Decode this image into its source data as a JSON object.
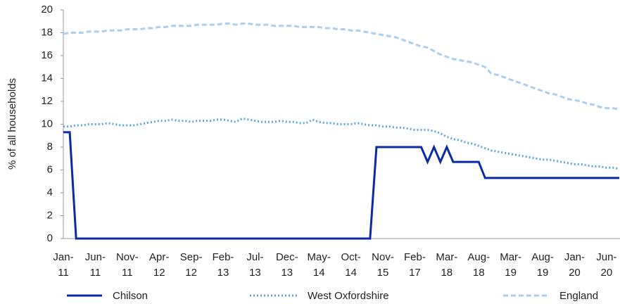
{
  "chart_data": {
    "type": "line",
    "ylabel": "% of all households",
    "categories": [
      "Jan-11",
      null,
      null,
      null,
      null,
      "Jun-11",
      null,
      null,
      null,
      null,
      "Nov-11",
      null,
      null,
      null,
      null,
      "Apr-12",
      null,
      null,
      null,
      null,
      "Sep-12",
      null,
      null,
      null,
      null,
      "Feb-13",
      null,
      null,
      null,
      null,
      "Jul-13",
      null,
      null,
      null,
      null,
      "Dec-13",
      null,
      null,
      null,
      null,
      "May-14",
      null,
      null,
      null,
      null,
      "Oct-14",
      null,
      null,
      null,
      null,
      "Nov-15",
      null,
      null,
      null,
      null,
      "Feb-17",
      null,
      null,
      null,
      null,
      "Mar-18",
      null,
      null,
      null,
      null,
      "Aug-18",
      null,
      null,
      null,
      null,
      "Mar-19",
      null,
      null,
      null,
      null,
      "Aug-19",
      null,
      null,
      null,
      null,
      "Jan-20",
      null,
      null,
      null,
      null,
      "Jun-20",
      null,
      null
    ],
    "series": [
      {
        "name": "Chilson",
        "color": "#0a2aa6",
        "style": "solid",
        "values": [
          9.3,
          9.3,
          0,
          0,
          0,
          0,
          0,
          0,
          0,
          0,
          0,
          0,
          0,
          0,
          0,
          0,
          0,
          0,
          0,
          0,
          0,
          0,
          0,
          0,
          0,
          0,
          0,
          0,
          0,
          0,
          0,
          0,
          0,
          0,
          0,
          0,
          0,
          0,
          0,
          0,
          0,
          0,
          0,
          0,
          0,
          0,
          0,
          0,
          0,
          8,
          8,
          8,
          8,
          8,
          8,
          8,
          8,
          6.7,
          8,
          6.7,
          8,
          6.7,
          6.7,
          6.7,
          6.7,
          6.7,
          5.3,
          5.3,
          5.3,
          5.3,
          5.3,
          5.3,
          5.3,
          5.3,
          5.3,
          5.3,
          5.3,
          5.3,
          5.3,
          5.3,
          5.3,
          5.3,
          5.3,
          5.3,
          5.3,
          5.3,
          5.3,
          5.3
        ]
      },
      {
        "name": "West Oxfordshire",
        "color": "#5aa7e8",
        "style": "dotted",
        "values": [
          9.8,
          9.8,
          9.9,
          9.9,
          10.0,
          10.0,
          10.0,
          10.1,
          10.0,
          9.9,
          9.9,
          9.9,
          10.0,
          10.1,
          10.2,
          10.3,
          10.3,
          10.4,
          10.3,
          10.3,
          10.2,
          10.3,
          10.3,
          10.3,
          10.4,
          10.4,
          10.3,
          10.2,
          10.5,
          10.4,
          10.3,
          10.2,
          10.2,
          10.2,
          10.3,
          10.2,
          10.2,
          10.1,
          10.1,
          10.4,
          10.2,
          10.1,
          10.1,
          10.0,
          10.0,
          10.0,
          10.1,
          10.0,
          9.9,
          9.9,
          9.8,
          9.8,
          9.7,
          9.7,
          9.6,
          9.5,
          9.5,
          9.5,
          9.4,
          9.2,
          8.9,
          8.7,
          8.6,
          8.4,
          8.3,
          8.1,
          7.9,
          7.7,
          7.6,
          7.5,
          7.4,
          7.3,
          7.2,
          7.1,
          7.0,
          6.9,
          6.9,
          6.8,
          6.7,
          6.6,
          6.5,
          6.5,
          6.4,
          6.3,
          6.3,
          6.2,
          6.2,
          6.1
        ]
      },
      {
        "name": "England",
        "color": "#a8cff5",
        "style": "dashed",
        "values": [
          17.9,
          18.0,
          18.0,
          18.0,
          18.1,
          18.1,
          18.1,
          18.2,
          18.2,
          18.2,
          18.3,
          18.3,
          18.3,
          18.4,
          18.4,
          18.5,
          18.5,
          18.6,
          18.6,
          18.6,
          18.6,
          18.7,
          18.7,
          18.7,
          18.7,
          18.8,
          18.8,
          18.7,
          18.8,
          18.8,
          18.7,
          18.7,
          18.7,
          18.6,
          18.6,
          18.6,
          18.6,
          18.5,
          18.5,
          18.5,
          18.5,
          18.4,
          18.4,
          18.3,
          18.3,
          18.2,
          18.2,
          18.1,
          18.0,
          17.9,
          17.8,
          17.7,
          17.6,
          17.4,
          17.2,
          17.0,
          16.8,
          16.7,
          16.4,
          16.1,
          15.9,
          15.7,
          15.6,
          15.5,
          15.4,
          15.2,
          15.0,
          14.4,
          14.3,
          14.1,
          13.9,
          13.7,
          13.5,
          13.3,
          13.1,
          12.9,
          12.7,
          12.6,
          12.4,
          12.2,
          12.1,
          12.0,
          11.8,
          11.7,
          11.5,
          11.4,
          11.4,
          11.3
        ]
      }
    ],
    "ylim": [
      0,
      20
    ],
    "yticks": [
      0,
      2,
      4,
      6,
      8,
      10,
      12,
      14,
      16,
      18,
      20
    ],
    "grid": false,
    "legend": "bottom"
  }
}
